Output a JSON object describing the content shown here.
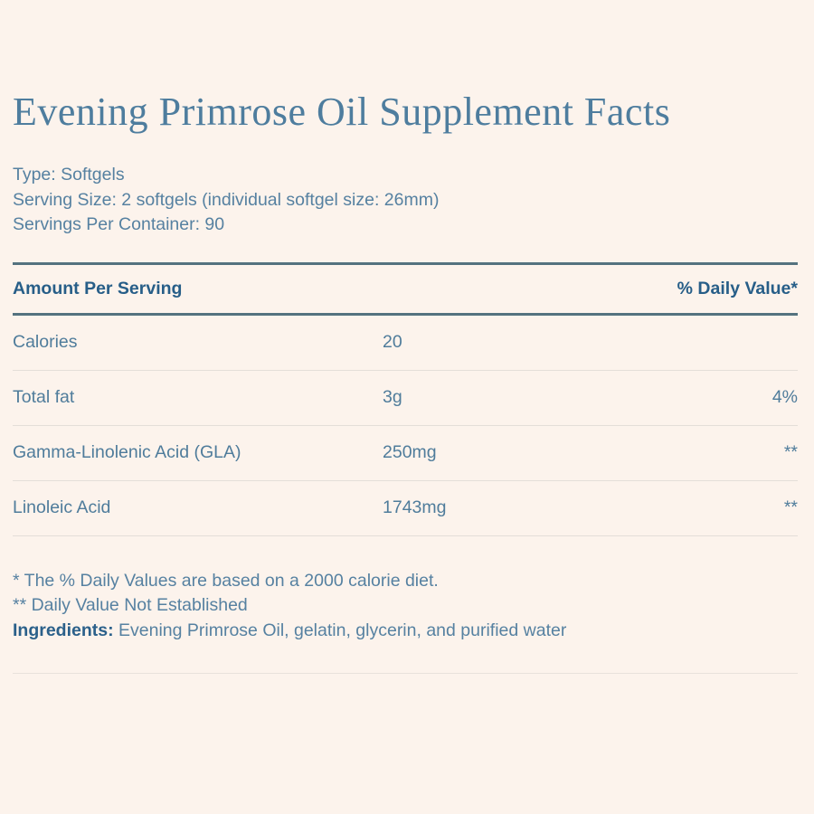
{
  "page": {
    "title": "Evening Primrose Oil Supplement Facts",
    "meta_lines": [
      "Type: Softgels",
      "Serving Size: 2 softgels (individual softgel size: 26mm)",
      "Servings Per Container: 90"
    ]
  },
  "table": {
    "header": {
      "amount_label": "Amount Per Serving",
      "daily_value_label": "% Daily Value*"
    },
    "rows": [
      {
        "name": "Calories",
        "amount": "20",
        "daily_value": ""
      },
      {
        "name": "Total fat",
        "amount": "3g",
        "daily_value": "4%"
      },
      {
        "name": "Gamma-Linolenic Acid (GLA)",
        "amount": "250mg",
        "daily_value": "**"
      },
      {
        "name": "Linoleic Acid",
        "amount": "1743mg",
        "daily_value": "**"
      }
    ]
  },
  "footnotes": {
    "daily_value_note": "* The % Daily Values are based on a 2000 calorie diet.",
    "not_established_note": "** Daily Value Not Established",
    "ingredients_label": "Ingredients:",
    "ingredients_text": " Evening Primrose Oil, gelatin, glycerin, and purified water"
  },
  "colors": {
    "background": "#fcf3ec",
    "title_text": "#4e7d9e",
    "body_text": "#5681a1",
    "row_text": "#4f7c9b",
    "header_text": "#275e88",
    "thick_rule": "#54727f",
    "thin_divider": "#e4ded8"
  }
}
